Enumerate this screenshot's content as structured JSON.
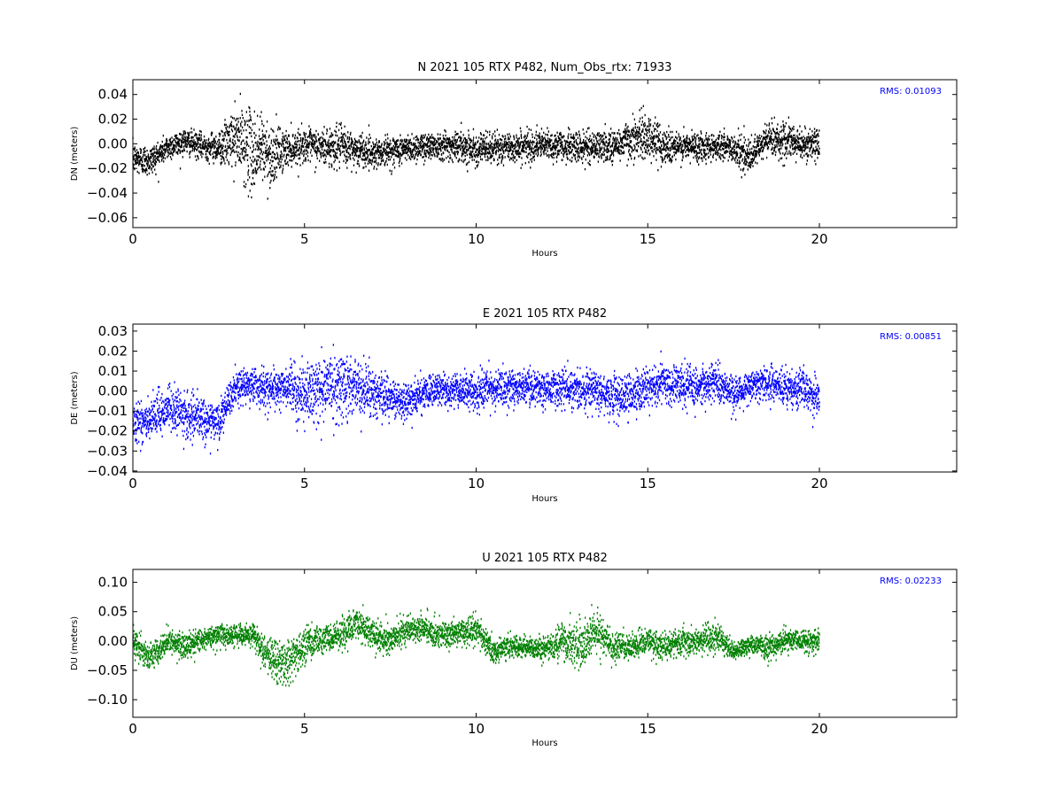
{
  "chart_data": [
    {
      "type": "scatter",
      "title": "N 2021 105 RTX  P482, Num_Obs_rtx: 71933",
      "xlabel": "Hours",
      "ylabel": "DN (meters)",
      "xlim": [
        0,
        24
      ],
      "ylim": [
        -0.068,
        0.052
      ],
      "xticks": [
        0,
        5,
        10,
        15,
        20
      ],
      "xtick_labels": [
        "0",
        "5",
        "10",
        "15",
        "20"
      ],
      "yticks": [
        -0.06,
        -0.04,
        -0.02,
        0.0,
        0.02,
        0.04
      ],
      "ytick_labels": [
        "−0.06",
        "−0.04",
        "−0.02",
        "0.00",
        "0.02",
        "0.04"
      ],
      "annotation": "RMS:  0.01093",
      "annotation_color": "#0000ff",
      "color": "#000000",
      "grid": false,
      "series": [
        {
          "x": [
            0,
            0.5,
            1,
            1.5,
            2,
            2.5,
            3,
            3.25,
            3.5,
            3.75,
            4,
            4.5,
            5,
            5.5,
            6,
            6.5,
            7,
            7.5,
            8,
            8.5,
            9,
            9.5,
            10,
            10.5,
            11,
            11.5,
            12,
            12.5,
            13,
            13.5,
            14,
            14.5,
            15,
            15.5,
            16,
            16.5,
            17,
            17.5,
            18,
            18.5,
            19,
            19.5,
            20
          ],
          "center": [
            -0.012,
            -0.014,
            -0.003,
            0.002,
            -0.002,
            -0.003,
            0.004,
            0.0,
            -0.008,
            -0.004,
            -0.01,
            -0.004,
            -0.001,
            -0.003,
            -0.002,
            -0.005,
            -0.007,
            -0.006,
            -0.004,
            -0.002,
            -0.001,
            -0.002,
            -0.004,
            -0.004,
            -0.003,
            -0.002,
            -0.001,
            -0.002,
            -0.003,
            -0.002,
            -0.002,
            0.004,
            0.006,
            -0.002,
            -0.003,
            -0.002,
            -0.002,
            -0.003,
            -0.012,
            0.005,
            0.002,
            0.0,
            -0.002
          ],
          "spread": [
            0.012,
            0.012,
            0.01,
            0.01,
            0.01,
            0.012,
            0.025,
            0.03,
            0.032,
            0.03,
            0.025,
            0.014,
            0.012,
            0.015,
            0.016,
            0.014,
            0.012,
            0.012,
            0.011,
            0.011,
            0.011,
            0.012,
            0.012,
            0.012,
            0.012,
            0.012,
            0.011,
            0.012,
            0.012,
            0.012,
            0.013,
            0.016,
            0.018,
            0.014,
            0.012,
            0.011,
            0.011,
            0.012,
            0.013,
            0.014,
            0.013,
            0.013,
            0.012
          ]
        }
      ]
    },
    {
      "type": "scatter",
      "title": "E 2021 105 RTX  P482",
      "xlabel": "Hours",
      "ylabel": "DE (meters)",
      "xlim": [
        0,
        24
      ],
      "ylim": [
        -0.0405,
        0.0335
      ],
      "xticks": [
        0,
        5,
        10,
        15,
        20
      ],
      "xtick_labels": [
        "0",
        "5",
        "10",
        "15",
        "20"
      ],
      "yticks": [
        -0.04,
        -0.03,
        -0.02,
        -0.01,
        0.0,
        0.01,
        0.02,
        0.03
      ],
      "ytick_labels": [
        "−0.04",
        "−0.03",
        "−0.02",
        "−0.01",
        "0.00",
        "0.01",
        "0.02",
        "0.03"
      ],
      "annotation": "RMS:  0.00851",
      "annotation_color": "#0000ff",
      "color": "#0000ff",
      "grid": false,
      "series": [
        {
          "x": [
            0,
            0.5,
            1,
            1.5,
            2,
            2.5,
            3,
            3.5,
            4,
            4.5,
            5,
            5.5,
            6,
            6.5,
            7,
            7.5,
            8,
            8.5,
            9,
            9.5,
            10,
            10.5,
            11,
            11.5,
            12,
            12.5,
            13,
            13.5,
            14,
            14.5,
            15,
            15.5,
            16,
            16.5,
            17,
            17.5,
            18,
            18.5,
            19,
            19.5,
            20
          ],
          "center": [
            -0.014,
            -0.016,
            -0.008,
            -0.012,
            -0.014,
            -0.016,
            0.002,
            0.003,
            0.001,
            0.002,
            -0.002,
            0.002,
            0.003,
            0.002,
            0.0,
            -0.004,
            -0.005,
            -0.001,
            0.001,
            0.0,
            -0.001,
            0.001,
            0.002,
            0.002,
            0.001,
            0.002,
            0.0,
            0.002,
            -0.003,
            -0.002,
            0.001,
            0.004,
            0.003,
            0.001,
            0.006,
            -0.002,
            0.003,
            0.004,
            0.002,
            0.001,
            -0.004
          ],
          "spread": [
            0.01,
            0.012,
            0.011,
            0.011,
            0.01,
            0.009,
            0.008,
            0.009,
            0.009,
            0.01,
            0.013,
            0.015,
            0.016,
            0.014,
            0.012,
            0.01,
            0.008,
            0.008,
            0.008,
            0.008,
            0.009,
            0.009,
            0.009,
            0.009,
            0.009,
            0.009,
            0.009,
            0.01,
            0.01,
            0.01,
            0.01,
            0.01,
            0.01,
            0.009,
            0.009,
            0.008,
            0.008,
            0.009,
            0.009,
            0.009,
            0.009
          ]
        }
      ]
    },
    {
      "type": "scatter",
      "title": "U 2021 105 RTX  P482",
      "xlabel": "Hours",
      "ylabel": "DU (meters)",
      "xlim": [
        0,
        24
      ],
      "ylim": [
        -0.13,
        0.122
      ],
      "xticks": [
        0,
        5,
        10,
        15,
        20
      ],
      "xtick_labels": [
        "0",
        "5",
        "10",
        "15",
        "20"
      ],
      "yticks": [
        -0.1,
        -0.05,
        0.0,
        0.05,
        0.1
      ],
      "ytick_labels": [
        "−0.10",
        "−0.05",
        "0.00",
        "0.05",
        "0.10"
      ],
      "annotation": "RMS:  0.02233",
      "annotation_color": "#0000ff",
      "color": "#008000",
      "grid": false,
      "series": [
        {
          "x": [
            0,
            0.5,
            1,
            1.5,
            2,
            2.5,
            3,
            3.5,
            4,
            4.5,
            5,
            5.5,
            6,
            6.5,
            7,
            7.5,
            8,
            8.5,
            9,
            9.5,
            10,
            10.5,
            11,
            11.5,
            12,
            12.5,
            13,
            13.5,
            14,
            14.5,
            15,
            15.5,
            16,
            16.5,
            17,
            17.5,
            18,
            18.5,
            19,
            19.5,
            20
          ],
          "center": [
            0.0,
            -0.03,
            0.0,
            -0.01,
            0.002,
            0.01,
            0.01,
            0.01,
            -0.03,
            -0.04,
            -0.01,
            0.005,
            0.01,
            0.03,
            0.01,
            0.0,
            0.02,
            0.02,
            0.01,
            0.015,
            0.02,
            -0.02,
            -0.01,
            -0.01,
            -0.015,
            0.0,
            -0.01,
            0.02,
            -0.01,
            -0.01,
            0.0,
            -0.01,
            0.0,
            0.0,
            0.01,
            -0.02,
            -0.005,
            -0.01,
            0.0,
            0.0,
            0.0
          ],
          "spread": [
            0.02,
            0.022,
            0.02,
            0.022,
            0.02,
            0.018,
            0.018,
            0.02,
            0.035,
            0.04,
            0.03,
            0.025,
            0.025,
            0.03,
            0.025,
            0.022,
            0.022,
            0.022,
            0.02,
            0.022,
            0.022,
            0.02,
            0.018,
            0.018,
            0.018,
            0.03,
            0.035,
            0.035,
            0.022,
            0.02,
            0.022,
            0.022,
            0.022,
            0.025,
            0.025,
            0.015,
            0.015,
            0.02,
            0.018,
            0.018,
            0.022
          ]
        }
      ]
    }
  ]
}
